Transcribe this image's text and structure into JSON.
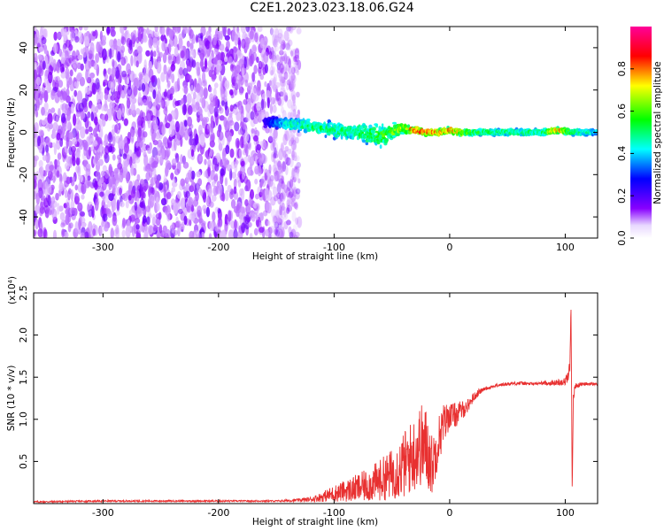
{
  "title": "C2E1.2023.023.18.06.G24",
  "chart_data": [
    {
      "type": "heatmap",
      "xlabel": "Height of straight line (km)",
      "ylabel": "Frequency (Hz)",
      "xlim": [
        -360,
        128
      ],
      "ylim": [
        -50,
        50
      ],
      "x_ticks": [
        -300,
        -200,
        -100,
        0,
        100
      ],
      "x_tick_labels": [
        "-300",
        "-200",
        "-100",
        "0",
        "100"
      ],
      "y_ticks": [
        -40,
        -20,
        0,
        20,
        40
      ],
      "y_tick_labels": [
        "-40",
        "-20",
        "0",
        "20",
        "40"
      ],
      "colorbar": {
        "label": "Normalized spectral amplitude",
        "range": [
          0,
          1
        ],
        "ticks": [
          0.0,
          0.2,
          0.4,
          0.6,
          0.8
        ],
        "tick_labels": [
          "0.0",
          "0.2",
          "0.4",
          "0.6",
          "0.8"
        ],
        "colors": [
          "#ffffff",
          "#8800ff",
          "#0000ff",
          "#00ffff",
          "#00ff00",
          "#ffff00",
          "#ff0000",
          "#ff00aa"
        ]
      },
      "noise_region": {
        "x_range": [
          -360,
          -140
        ],
        "frequency_spread": [
          -50,
          50
        ],
        "amplitude": 0.15
      },
      "signal_trace": {
        "x": [
          -160,
          -140,
          -120,
          -100,
          -80,
          -60,
          -40,
          -30,
          -20,
          -10,
          0,
          10,
          20,
          40,
          60,
          80,
          95,
          105,
          128
        ],
        "center_frequency": [
          5,
          4,
          3,
          1,
          0,
          -2,
          2,
          1,
          0,
          0,
          1,
          0,
          0,
          0,
          0,
          0,
          1,
          0,
          0
        ],
        "spread": [
          3,
          4,
          4,
          5,
          6,
          8,
          3,
          2,
          2,
          2,
          2,
          2,
          2,
          2,
          2,
          2,
          2,
          2,
          2
        ],
        "peak_amplitude": [
          0.25,
          0.5,
          0.55,
          0.55,
          0.55,
          0.6,
          0.7,
          0.85,
          0.9,
          0.85,
          0.85,
          0.75,
          0.6,
          0.55,
          0.55,
          0.55,
          0.85,
          0.6,
          0.45
        ]
      },
      "grid": false
    },
    {
      "type": "line",
      "xlabel": "Height of straight line (km)",
      "ylabel": "SNR (10 * v/v)",
      "scale_label": "(x10⁴)",
      "xlim": [
        -360,
        128
      ],
      "ylim": [
        0,
        2.5
      ],
      "x_ticks": [
        -300,
        -200,
        -100,
        0,
        100
      ],
      "x_tick_labels": [
        "-300",
        "-200",
        "-100",
        "0",
        "100"
      ],
      "y_ticks": [
        0.5,
        1.0,
        1.5,
        2.0,
        2.5
      ],
      "y_tick_labels": [
        "0.5",
        "1.0",
        "1.5",
        "2.0",
        "2.5"
      ],
      "series": [
        {
          "color": "#e83030",
          "x": [
            -360,
            -300,
            -200,
            -150,
            -130,
            -120,
            -110,
            -100,
            -90,
            -80,
            -70,
            -60,
            -50,
            -40,
            -30,
            -25,
            -20,
            -15,
            -10,
            -5,
            0,
            5,
            10,
            15,
            20,
            25,
            30,
            40,
            50,
            60,
            70,
            80,
            90,
            100,
            102,
            104,
            105,
            106,
            107,
            108,
            110,
            115,
            128
          ],
          "y": [
            0.02,
            0.03,
            0.03,
            0.03,
            0.04,
            0.05,
            0.08,
            0.12,
            0.15,
            0.18,
            0.22,
            0.28,
            0.35,
            0.45,
            0.6,
            0.7,
            0.65,
            0.45,
            0.75,
            0.95,
            1.05,
            1.05,
            1.1,
            1.15,
            1.25,
            1.32,
            1.36,
            1.4,
            1.42,
            1.43,
            1.42,
            1.43,
            1.43,
            1.45,
            1.5,
            1.6,
            2.4,
            0.2,
            1.2,
            1.38,
            1.4,
            1.42,
            1.42
          ],
          "noise_amplitude": [
            0.01,
            0.01,
            0.01,
            0.01,
            0.02,
            0.03,
            0.06,
            0.1,
            0.13,
            0.17,
            0.2,
            0.25,
            0.3,
            0.4,
            0.45,
            0.5,
            0.5,
            0.35,
            0.3,
            0.25,
            0.15,
            0.15,
            0.12,
            0.08,
            0.06,
            0.04,
            0.02,
            0.02,
            0.02,
            0.02,
            0.02,
            0.02,
            0.03,
            0.05,
            0.08,
            0.1,
            0.1,
            0.1,
            0.1,
            0.05,
            0.03,
            0.02,
            0.02
          ]
        }
      ],
      "grid": false
    }
  ]
}
